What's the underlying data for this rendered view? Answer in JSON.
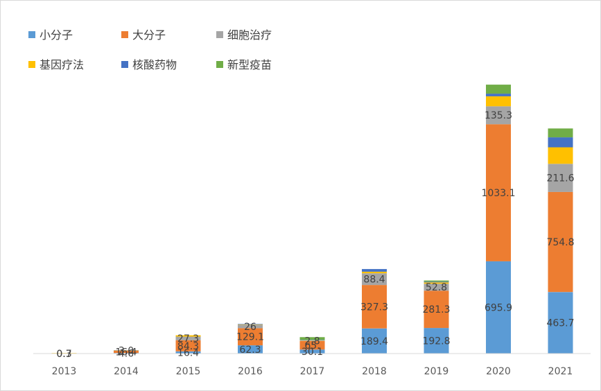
{
  "chart_data": {
    "type": "bar",
    "stacked": true,
    "categories": [
      "2013",
      "2014",
      "2015",
      "2016",
      "2017",
      "2018",
      "2019",
      "2020",
      "2021"
    ],
    "series": [
      {
        "name": "小分子",
        "color": "#5b9bd5",
        "values": [
          0.3,
          4.6,
          16.4,
          62.3,
          30.1,
          189.4,
          192.8,
          695.9,
          463.7
        ]
      },
      {
        "name": "大分子",
        "color": "#ed7d31",
        "values": [
          0.7,
          16.4,
          84.3,
          129.1,
          65.0,
          327.3,
          281.3,
          1033.1,
          754.8
        ]
      },
      {
        "name": "细胞治疗",
        "color": "#a5a5a5",
        "values": [
          0,
          3.0,
          27.3,
          26,
          2.8,
          88.4,
          52.8,
          135.3,
          211.6
        ]
      },
      {
        "name": "基因疗法",
        "color": "#ffc000",
        "values": [
          3.0,
          1.5,
          10.0,
          3.0,
          2.0,
          12.0,
          10.0,
          75.0,
          125.0
        ]
      },
      {
        "name": "核酸药物",
        "color": "#4472c4",
        "values": [
          0,
          0.5,
          0,
          3.0,
          3.0,
          20.0,
          5.0,
          20.0,
          75.0
        ]
      },
      {
        "name": "新型疫苗",
        "color": "#70ad47",
        "values": [
          0,
          0,
          0,
          0,
          21.0,
          0,
          9.0,
          68.0,
          67.0
        ]
      }
    ],
    "data_labels": [
      [
        "0.3",
        "0.7",
        null,
        null,
        null,
        null
      ],
      [
        "4.6",
        "16.4",
        "3.0",
        null,
        null,
        null
      ],
      [
        "16.4",
        "84.3",
        "27.3",
        null,
        null,
        null
      ],
      [
        "62.3",
        "129.1",
        "26",
        null,
        null,
        null
      ],
      [
        "30.1",
        "65.",
        "2.8",
        null,
        null,
        null
      ],
      [
        "189.4",
        "327.3",
        "88.4",
        null,
        null,
        null
      ],
      [
        "192.8",
        "281.3",
        "52.8",
        null,
        null,
        null
      ],
      [
        "695.9",
        "1033.1",
        "135.3",
        null,
        null,
        null
      ],
      [
        "463.7",
        "754.8",
        "211.6",
        null,
        null,
        null
      ]
    ],
    "ylim": [
      0,
      2310
    ],
    "grid": false,
    "legend_position": "top-left",
    "title": "",
    "xlabel": "",
    "ylabel": ""
  }
}
